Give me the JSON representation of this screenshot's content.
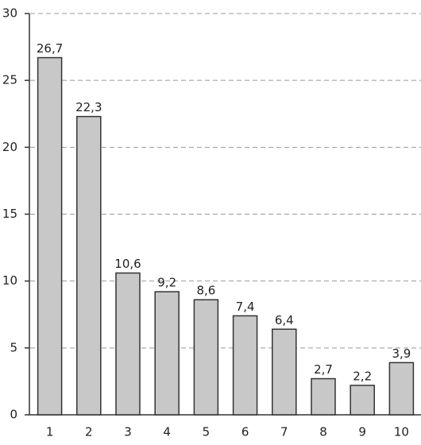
{
  "chart_data": {
    "type": "bar",
    "categories": [
      "1",
      "2",
      "3",
      "4",
      "5",
      "6",
      "7",
      "8",
      "9",
      "10"
    ],
    "values": [
      26.7,
      22.3,
      10.6,
      9.2,
      8.6,
      7.4,
      6.4,
      2.7,
      2.2,
      3.9
    ],
    "value_labels": [
      "26,7",
      "22,3",
      "10,6",
      "9,2",
      "8,6",
      "7,4",
      "6,4",
      "2,7",
      "2,2",
      "3,9"
    ],
    "color": "#c8c8c8",
    "ylim": [
      0,
      30
    ],
    "yticks": [
      0,
      5,
      10,
      15,
      20,
      25,
      30
    ],
    "grid": true
  }
}
